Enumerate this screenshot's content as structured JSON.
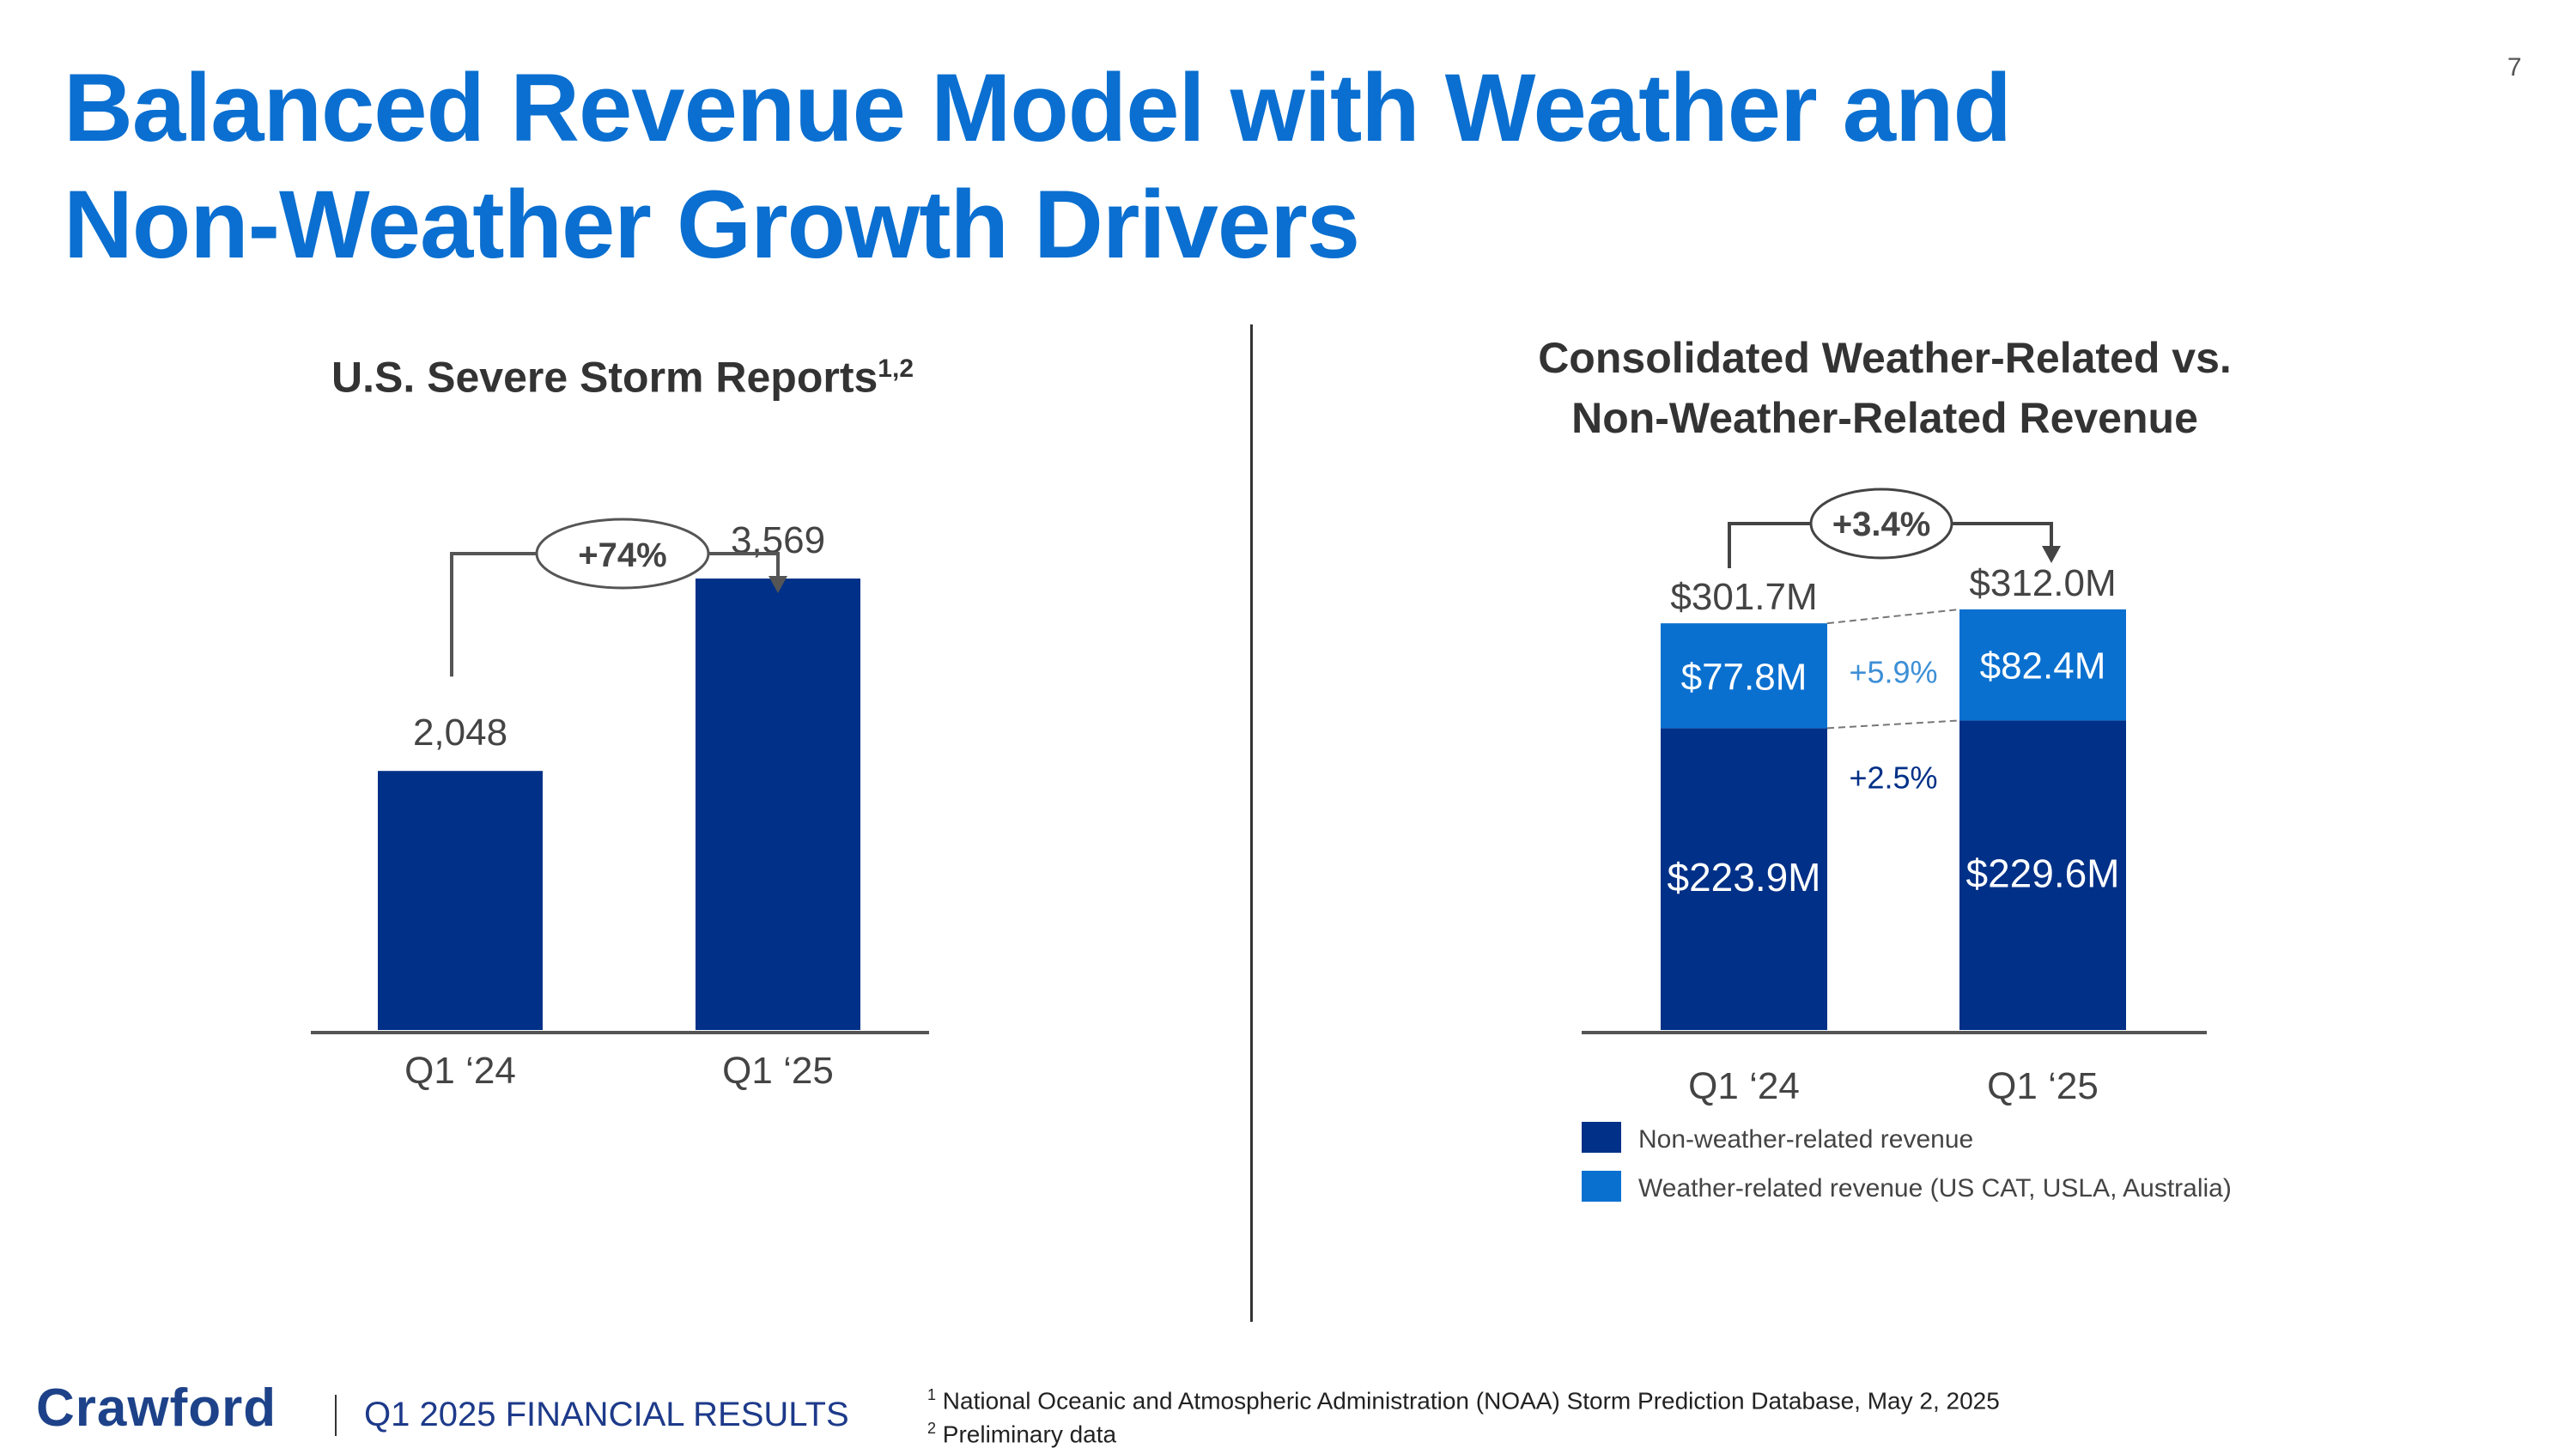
{
  "slide": {
    "title": "Balanced Revenue Model with Weather and Non-Weather Growth Drivers",
    "page_number": "7"
  },
  "footer": {
    "logo": "Crawford",
    "subtitle": "Q1 2025 FINANCIAL RESULTS",
    "footnotes": [
      {
        "mark": "1",
        "text": "National Oceanic and Atmospheric Administration (NOAA) Storm Prediction Database, May 2, 2025"
      },
      {
        "mark": "2",
        "text": "Preliminary data"
      }
    ]
  },
  "colors": {
    "title": "#0a6fd0",
    "dark_bar": "#003087",
    "light_bar": "#0a70d0",
    "text": "#444444"
  },
  "chart_data": [
    {
      "type": "bar",
      "title": "U.S. Severe Storm Reports",
      "title_superscript": "1,2",
      "categories": [
        "Q1 ‘24",
        "Q1 ‘25"
      ],
      "values": [
        2048,
        3569
      ],
      "value_labels": [
        "2,048",
        "3,569"
      ],
      "change_label": "+74%",
      "xlabel": "",
      "ylabel": "",
      "ylim": [
        0,
        3800
      ],
      "grid": false,
      "legend": "none"
    },
    {
      "type": "bar",
      "stacked": true,
      "title": "Consolidated Weather-Related vs. Non-Weather-Related Revenue",
      "title_lines": [
        "Consolidated Weather-Related vs.",
        "Non-Weather-Related Revenue"
      ],
      "categories": [
        "Q1 ‘24",
        "Q1 ‘25"
      ],
      "series": [
        {
          "name": "Non-weather-related revenue",
          "values": [
            223.9,
            229.6
          ],
          "labels": [
            "$223.9M",
            "$229.6M"
          ],
          "change_label": "+2.5%"
        },
        {
          "name": "Weather-related revenue (US CAT, USLA, Australia)",
          "values": [
            77.8,
            82.4
          ],
          "labels": [
            "$77.8M",
            "$82.4M"
          ],
          "change_label": "+5.9%"
        }
      ],
      "totals": [
        301.7,
        312.0
      ],
      "total_labels": [
        "$301.7M",
        "$312.0M"
      ],
      "change_label": "+3.4%",
      "units": "USD millions",
      "ylim": [
        0,
        330
      ],
      "grid": false,
      "legend": "bottom-left"
    }
  ]
}
